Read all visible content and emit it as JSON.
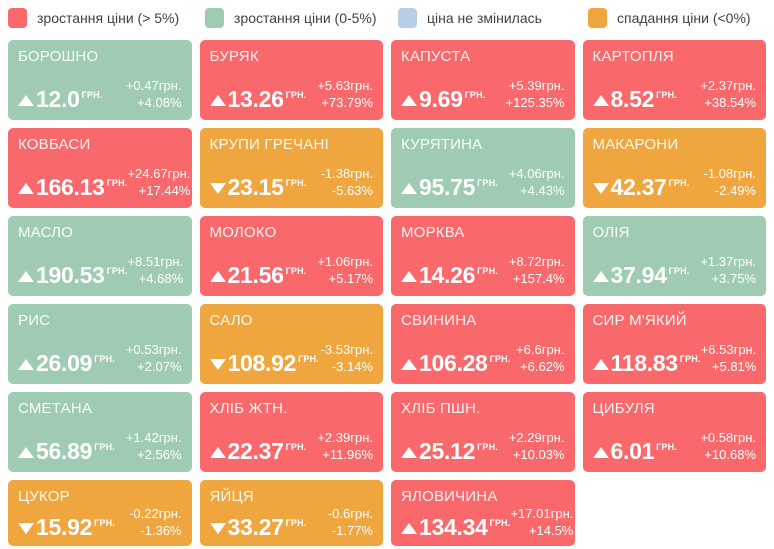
{
  "chart_data": {
    "type": "heatmap",
    "title": "",
    "legend_position": "top",
    "colors": {
      "red": "#f9696b",
      "green": "#9ecbb2",
      "blue": "#b7cee7",
      "orange": "#f0a63e"
    },
    "legend": [
      {
        "label": "зростання ціни (> 5%)",
        "category": "red"
      },
      {
        "label": "зростання ціни (0-5%)",
        "category": "green"
      },
      {
        "label": "ціна не змінилась",
        "category": "blue"
      },
      {
        "label": "спадання ціни (<0%)",
        "category": "orange"
      }
    ],
    "tiles": [
      {
        "name": "БОРОШНО",
        "price": "12.0",
        "currency": "ГРН.",
        "change": "+0.47грн.",
        "percent": "+4.08%",
        "direction": "up",
        "category": "green"
      },
      {
        "name": "БУРЯК",
        "price": "13.26",
        "currency": "ГРН.",
        "change": "+5.63грн.",
        "percent": "+73.79%",
        "direction": "up",
        "category": "red"
      },
      {
        "name": "КАПУСТА",
        "price": "9.69",
        "currency": "ГРН.",
        "change": "+5.39грн.",
        "percent": "+125.35%",
        "direction": "up",
        "category": "red"
      },
      {
        "name": "КАРТОПЛЯ",
        "price": "8.52",
        "currency": "ГРН.",
        "change": "+2.37грн.",
        "percent": "+38.54%",
        "direction": "up",
        "category": "red"
      },
      {
        "name": "КОВБАСИ",
        "price": "166.13",
        "currency": "ГРН.",
        "change": "+24.67грн.",
        "percent": "+17.44%",
        "direction": "up",
        "category": "red"
      },
      {
        "name": "КРУПИ ГРЕЧАНІ",
        "price": "23.15",
        "currency": "ГРН.",
        "change": "-1.38грн.",
        "percent": "-5.63%",
        "direction": "down",
        "category": "orange"
      },
      {
        "name": "КУРЯТИНА",
        "price": "95.75",
        "currency": "ГРН.",
        "change": "+4.06грн.",
        "percent": "+4.43%",
        "direction": "up",
        "category": "green"
      },
      {
        "name": "МАКАРОНИ",
        "price": "42.37",
        "currency": "ГРН.",
        "change": "-1.08грн.",
        "percent": "-2.49%",
        "direction": "down",
        "category": "orange"
      },
      {
        "name": "МАСЛО",
        "price": "190.53",
        "currency": "ГРН.",
        "change": "+8.51грн.",
        "percent": "+4.68%",
        "direction": "up",
        "category": "green"
      },
      {
        "name": "МОЛОКО",
        "price": "21.56",
        "currency": "ГРН.",
        "change": "+1.06грн.",
        "percent": "+5.17%",
        "direction": "up",
        "category": "red"
      },
      {
        "name": "МОРКВА",
        "price": "14.26",
        "currency": "ГРН.",
        "change": "+8.72грн.",
        "percent": "+157.4%",
        "direction": "up",
        "category": "red"
      },
      {
        "name": "ОЛІЯ",
        "price": "37.94",
        "currency": "ГРН.",
        "change": "+1.37грн.",
        "percent": "+3.75%",
        "direction": "up",
        "category": "green"
      },
      {
        "name": "РИС",
        "price": "26.09",
        "currency": "ГРН.",
        "change": "+0.53грн.",
        "percent": "+2.07%",
        "direction": "up",
        "category": "green"
      },
      {
        "name": "САЛО",
        "price": "108.92",
        "currency": "ГРН.",
        "change": "-3.53грн.",
        "percent": "-3.14%",
        "direction": "down",
        "category": "orange"
      },
      {
        "name": "СВИНИНА",
        "price": "106.28",
        "currency": "ГРН.",
        "change": "+6.6грн.",
        "percent": "+6.62%",
        "direction": "up",
        "category": "red"
      },
      {
        "name": "СИР М'ЯКИЙ",
        "price": "118.83",
        "currency": "ГРН.",
        "change": "+6.53грн.",
        "percent": "+5.81%",
        "direction": "up",
        "category": "red"
      },
      {
        "name": "СМЕТАНА",
        "price": "56.89",
        "currency": "ГРН.",
        "change": "+1.42грн.",
        "percent": "+2.56%",
        "direction": "up",
        "category": "green"
      },
      {
        "name": "ХЛІБ ЖТН.",
        "price": "22.37",
        "currency": "ГРН.",
        "change": "+2.39грн.",
        "percent": "+11.96%",
        "direction": "up",
        "category": "red"
      },
      {
        "name": "ХЛІБ ПШН.",
        "price": "25.12",
        "currency": "ГРН.",
        "change": "+2.29грн.",
        "percent": "+10.03%",
        "direction": "up",
        "category": "red"
      },
      {
        "name": "ЦИБУЛЯ",
        "price": "6.01",
        "currency": "ГРН.",
        "change": "+0.58грн.",
        "percent": "+10.68%",
        "direction": "up",
        "category": "red"
      },
      {
        "name": "ЦУКОР",
        "price": "15.92",
        "currency": "ГРН.",
        "change": "-0.22грн.",
        "percent": "-1.36%",
        "direction": "down",
        "category": "orange"
      },
      {
        "name": "ЯЙЦЯ",
        "price": "33.27",
        "currency": "ГРН.",
        "change": "-0.6грн.",
        "percent": "-1.77%",
        "direction": "down",
        "category": "orange"
      },
      {
        "name": "ЯЛОВИЧИНА",
        "price": "134.34",
        "currency": "ГРН.",
        "change": "+17.01грн.",
        "percent": "+14.5%",
        "direction": "up",
        "category": "red"
      }
    ]
  }
}
